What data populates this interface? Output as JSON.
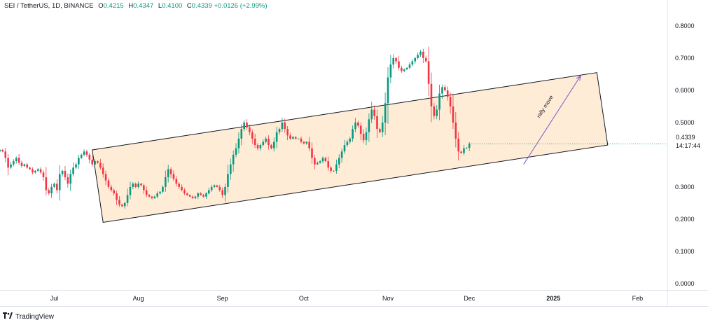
{
  "legend": {
    "symbol": "SEI / TetherUS, 1D, BINANCE",
    "open_label": "O",
    "open": "0.4215",
    "high_label": "H",
    "high": "0.4347",
    "low_label": "L",
    "low": "0.4100",
    "close_label": "C",
    "close": "0.4339",
    "change": "+0.0126 (+2.99%)"
  },
  "price_tag": {
    "price": "0.4339",
    "countdown": "14:17:44"
  },
  "branding": {
    "name": "TradingView"
  },
  "colors": {
    "up": "#089981",
    "down": "#f23645",
    "channel_fill": "#ffe6c8",
    "annotation": "#7e57c2"
  },
  "chart_data": {
    "type": "candlestick",
    "symbol": "SEI / TetherUS",
    "interval": "1D",
    "exchange": "BINANCE",
    "y_ticks": [
      0.8,
      0.7,
      0.6,
      0.5,
      0.3,
      0.2,
      0.1,
      0.0
    ],
    "y_tick_labels": [
      "0.8000",
      "0.7000",
      "0.6000",
      "0.5000",
      "0.3000",
      "0.2000",
      "0.1000",
      "0.0000"
    ],
    "ylim": [
      -0.02,
      0.85
    ],
    "x_start": "2024-06-11",
    "x_end": "2025-02-12",
    "x_ticks": [
      {
        "date": "2024-07-01",
        "label": "Jul"
      },
      {
        "date": "2024-08-01",
        "label": "Aug"
      },
      {
        "date": "2024-09-01",
        "label": "Sep"
      },
      {
        "date": "2024-10-01",
        "label": "Oct"
      },
      {
        "date": "2024-11-01",
        "label": "Nov"
      },
      {
        "date": "2024-12-01",
        "label": "Dec"
      },
      {
        "date": "2025-01-01",
        "label": "2025"
      },
      {
        "date": "2025-02-01",
        "label": "Feb"
      }
    ],
    "close_path_start": "2024-06-11",
    "closes": [
      0.415,
      0.41,
      0.39,
      0.36,
      0.37,
      0.38,
      0.39,
      0.375,
      0.365,
      0.37,
      0.36,
      0.355,
      0.345,
      0.35,
      0.355,
      0.345,
      0.33,
      0.29,
      0.28,
      0.3,
      0.31,
      0.29,
      0.34,
      0.35,
      0.33,
      0.31,
      0.34,
      0.36,
      0.37,
      0.39,
      0.4,
      0.41,
      0.4,
      0.385,
      0.37,
      0.38,
      0.375,
      0.36,
      0.34,
      0.32,
      0.3,
      0.29,
      0.28,
      0.26,
      0.245,
      0.24,
      0.25,
      0.275,
      0.3,
      0.31,
      0.3,
      0.31,
      0.305,
      0.29,
      0.275,
      0.27,
      0.265,
      0.27,
      0.28,
      0.285,
      0.3,
      0.33,
      0.355,
      0.34,
      0.325,
      0.31,
      0.3,
      0.29,
      0.28,
      0.275,
      0.27,
      0.265,
      0.27,
      0.28,
      0.275,
      0.27,
      0.28,
      0.29,
      0.3,
      0.305,
      0.3,
      0.29,
      0.275,
      0.3,
      0.34,
      0.37,
      0.4,
      0.42,
      0.45,
      0.48,
      0.5,
      0.485,
      0.47,
      0.45,
      0.43,
      0.42,
      0.43,
      0.44,
      0.45,
      0.43,
      0.42,
      0.44,
      0.47,
      0.48,
      0.5,
      0.48,
      0.46,
      0.45,
      0.455,
      0.45,
      0.45,
      0.44,
      0.435,
      0.44,
      0.42,
      0.39,
      0.37,
      0.375,
      0.38,
      0.39,
      0.38,
      0.36,
      0.35,
      0.35,
      0.37,
      0.39,
      0.41,
      0.43,
      0.44,
      0.45,
      0.48,
      0.5,
      0.49,
      0.465,
      0.445,
      0.47,
      0.51,
      0.54,
      0.52,
      0.48,
      0.47,
      0.5,
      0.56,
      0.64,
      0.68,
      0.7,
      0.69,
      0.67,
      0.66,
      0.665,
      0.67,
      0.68,
      0.69,
      0.7,
      0.71,
      0.72,
      0.7,
      0.69,
      0.62,
      0.55,
      0.52,
      0.54,
      0.59,
      0.61,
      0.6,
      0.58,
      0.55,
      0.5,
      0.45,
      0.41,
      0.405,
      0.42,
      0.4215,
      0.4339
    ],
    "channel": {
      "lower_line": [
        {
          "date": "2024-07-19",
          "price": 0.19
        },
        {
          "date": "2025-01-21",
          "price": 0.43
        }
      ],
      "upper_line": [
        {
          "date": "2024-07-15",
          "price": 0.415
        },
        {
          "date": "2025-01-17",
          "price": 0.655
        }
      ]
    },
    "annotation": {
      "text": "rally move",
      "arrow_from": {
        "date": "2024-12-21",
        "price": 0.37
      },
      "arrow_to": {
        "date": "2025-01-11",
        "price": 0.645
      }
    },
    "last_price": 0.4339,
    "last_open": 0.4215
  }
}
